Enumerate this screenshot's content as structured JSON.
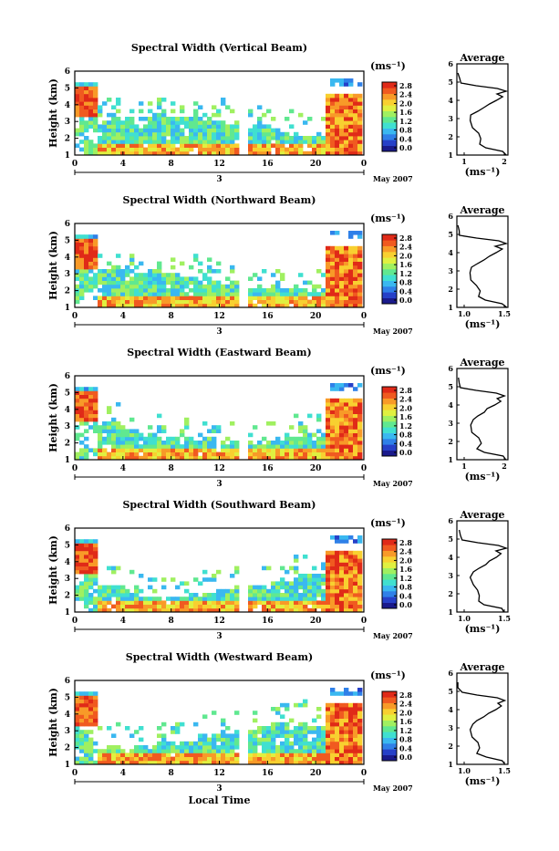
{
  "chart_data": [
    {
      "type": "heatmap",
      "title": "Spectral Width (Vertical Beam)",
      "ylabel": "Height (km)",
      "yticks": [
        "1",
        "2",
        "3",
        "4",
        "5",
        "6"
      ],
      "xticks": [
        "0",
        "4",
        "8",
        "12",
        "16",
        "20",
        "0"
      ],
      "day_labels": [
        "3"
      ],
      "date_label": "May 2007",
      "xlabel": "",
      "colorbar": {
        "unit": "(ms⁻¹)",
        "ticks": [
          "2.8",
          "2.4",
          "2.0",
          "1.6",
          "1.2",
          "0.8",
          "0.4",
          "0.0"
        ]
      },
      "average": {
        "title": "Average",
        "xlabel": "(ms⁻¹)",
        "xticks": [
          "1",
          "2"
        ],
        "yticks": [
          "1",
          "2",
          "3",
          "4",
          "5",
          "6"
        ]
      }
    },
    {
      "type": "heatmap",
      "title": "Spectral Width (Northward Beam)",
      "ylabel": "Height (km)",
      "yticks": [
        "1",
        "2",
        "3",
        "4",
        "5",
        "6"
      ],
      "xticks": [
        "0",
        "4",
        "8",
        "12",
        "16",
        "20",
        "0"
      ],
      "day_labels": [
        "3"
      ],
      "date_label": "May 2007",
      "xlabel": "",
      "colorbar": {
        "unit": "(ms⁻¹)",
        "ticks": [
          "2.8",
          "2.4",
          "2.0",
          "1.6",
          "1.2",
          "0.8",
          "0.4",
          "0.0"
        ]
      },
      "average": {
        "title": "Average",
        "xlabel": "(ms⁻¹)",
        "xticks": [
          "1.0",
          "1.5"
        ],
        "yticks": [
          "1",
          "2",
          "3",
          "4",
          "5",
          "6"
        ]
      }
    },
    {
      "type": "heatmap",
      "title": "Spectral Width (Eastward Beam)",
      "ylabel": "Height (km)",
      "yticks": [
        "1",
        "2",
        "3",
        "4",
        "5",
        "6"
      ],
      "xticks": [
        "0",
        "4",
        "8",
        "12",
        "16",
        "20",
        "0"
      ],
      "day_labels": [
        "3"
      ],
      "date_label": "May 2007",
      "xlabel": "",
      "colorbar": {
        "unit": "(ms⁻¹)",
        "ticks": [
          "2.8",
          "2.4",
          "2.0",
          "1.6",
          "1.2",
          "0.8",
          "0.4",
          "0.0"
        ]
      },
      "average": {
        "title": "Average",
        "xlabel": "(ms⁻¹)",
        "xticks": [
          "1",
          "2"
        ],
        "yticks": [
          "1",
          "2",
          "3",
          "4",
          "5",
          "6"
        ]
      }
    },
    {
      "type": "heatmap",
      "title": "Spectral Width (Southward Beam)",
      "ylabel": "Height (km)",
      "yticks": [
        "1",
        "2",
        "3",
        "4",
        "5",
        "6"
      ],
      "xticks": [
        "0",
        "4",
        "8",
        "12",
        "16",
        "20",
        "0"
      ],
      "day_labels": [
        "3"
      ],
      "date_label": "May 2007",
      "xlabel": "",
      "colorbar": {
        "unit": "(ms⁻¹)",
        "ticks": [
          "2.8",
          "2.4",
          "2.0",
          "1.6",
          "1.2",
          "0.8",
          "0.4",
          "0.0"
        ]
      },
      "average": {
        "title": "Average",
        "xlabel": "(ms⁻¹)",
        "xticks": [
          "1.0",
          "1.5"
        ],
        "yticks": [
          "1",
          "2",
          "3",
          "4",
          "5",
          "6"
        ]
      }
    },
    {
      "type": "heatmap",
      "title": "Spectral Width (Westward Beam)",
      "ylabel": "Height (km)",
      "yticks": [
        "1",
        "2",
        "3",
        "4",
        "5",
        "6"
      ],
      "xticks": [
        "0",
        "4",
        "8",
        "12",
        "16",
        "20",
        "0"
      ],
      "day_labels": [
        "3"
      ],
      "date_label": "May 2007",
      "xlabel": "Local Time",
      "colorbar": {
        "unit": "(ms⁻¹)",
        "ticks": [
          "2.8",
          "2.4",
          "2.0",
          "1.6",
          "1.2",
          "0.8",
          "0.4",
          "0.0"
        ]
      },
      "average": {
        "title": "Average",
        "xlabel": "(ms⁻¹)",
        "xticks": [
          "1.0",
          "1.5"
        ],
        "yticks": [
          "1",
          "2",
          "3",
          "4",
          "5",
          "6"
        ]
      }
    }
  ],
  "colormap": [
    "#1a1a8c",
    "#2640c8",
    "#2f80e8",
    "#3ab8f0",
    "#40e0d0",
    "#60e890",
    "#a0f060",
    "#e0f040",
    "#f8d030",
    "#f89a28",
    "#f05a20",
    "#e02a18"
  ]
}
